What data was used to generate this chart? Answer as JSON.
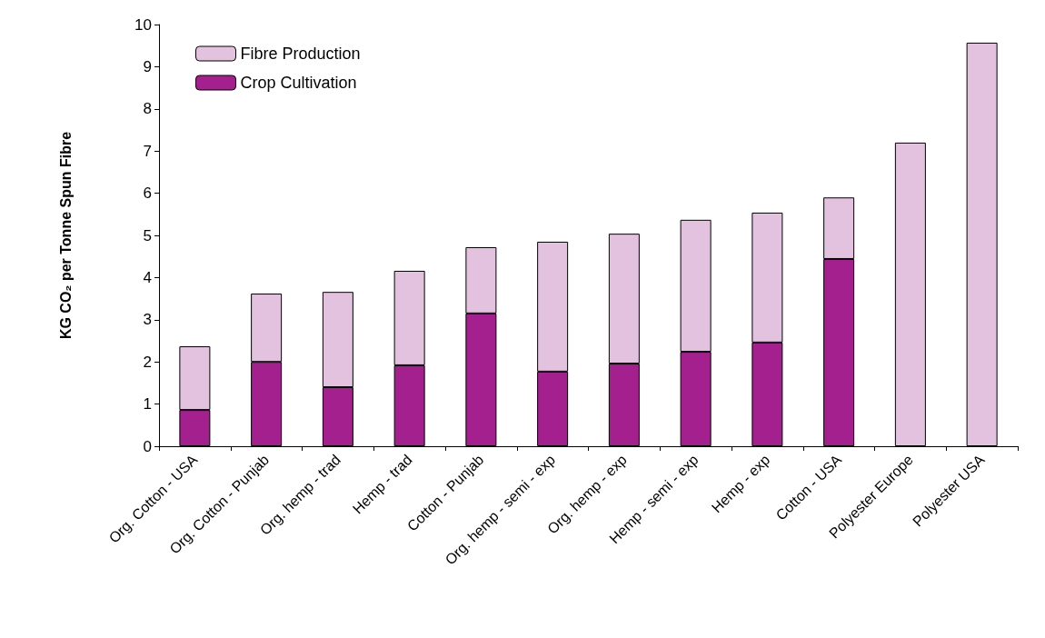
{
  "chart_data": {
    "type": "bar",
    "stacked": true,
    "ylabel": "KG CO₂ per Tonne Spun Fibre",
    "categories": [
      "Org. Cotton - USA",
      "Org. Cotton - Punjab",
      "Org. hemp - trad",
      "Hemp - trad",
      "Cotton - Punjab",
      "Org. hemp - semi - exp",
      "Org. hemp - exp",
      "Hemp - semi - exp",
      "Hemp - exp",
      "Cotton - USA",
      "Polyester Europe",
      "Polyester USA"
    ],
    "series": [
      {
        "name": "Crop Cultivation",
        "color": "#a3208e",
        "values": [
          0.86,
          2.0,
          1.4,
          1.92,
          3.15,
          1.77,
          1.96,
          2.24,
          2.46,
          4.44,
          null,
          null
        ]
      },
      {
        "name": "Fibre Production",
        "color": "#e2c2de",
        "values": [
          1.51,
          1.62,
          2.26,
          2.24,
          1.57,
          3.08,
          3.08,
          3.13,
          3.08,
          1.46,
          7.2,
          9.57
        ]
      }
    ],
    "ylim": [
      0,
      10
    ],
    "yticks": [
      0,
      1,
      2,
      3,
      4,
      5,
      6,
      7,
      8,
      9,
      10
    ],
    "grid": false,
    "legend": "top left"
  }
}
